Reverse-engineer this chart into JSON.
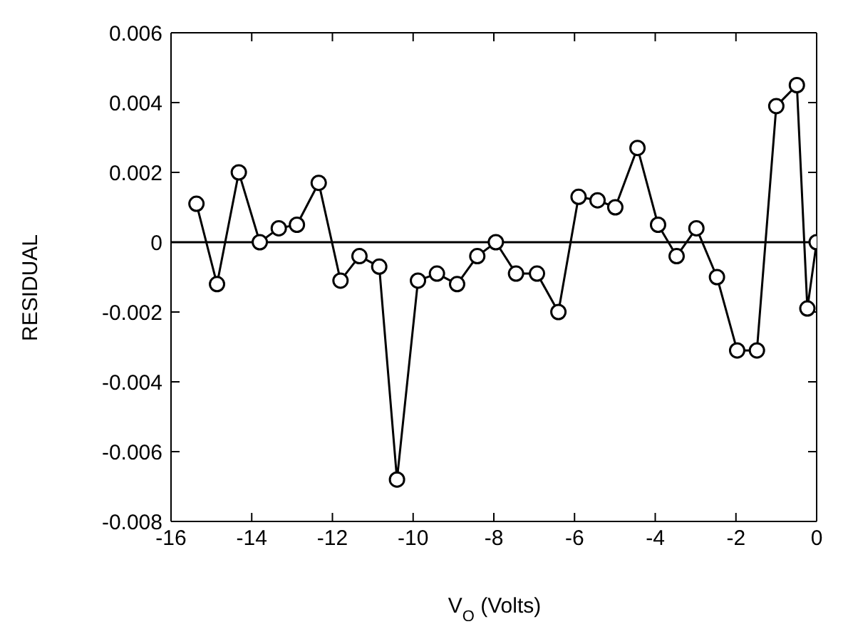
{
  "chart_data": {
    "type": "line",
    "xlabel": "V$_{O}$ (Volts)",
    "ylabel": "RESIDUAL",
    "x": [
      -15.37,
      -14.86,
      -14.32,
      -13.8,
      -13.33,
      -12.88,
      -12.34,
      -11.8,
      -11.33,
      -10.84,
      -10.4,
      -9.88,
      -9.41,
      -8.91,
      -8.41,
      -7.95,
      -7.45,
      -6.93,
      -6.4,
      -5.9,
      -5.43,
      -4.99,
      -4.44,
      -3.93,
      -3.47,
      -2.98,
      -2.47,
      -1.97,
      -1.48,
      -1.0,
      -0.49,
      -0.23,
      0
    ],
    "series": [
      {
        "color": "#000000",
        "values": [
          0.0011,
          -0.0012,
          0.002,
          0,
          0.0004,
          0.0005,
          0.0017,
          -0.0011,
          -0.0004,
          -0.0007,
          -0.0068,
          -0.0011,
          -0.0009,
          -0.0012,
          -0.0004,
          0,
          -0.0009,
          -0.0009,
          -0.002,
          0.0013,
          0.0012,
          0.001,
          0.0027,
          0.0005,
          -0.0004,
          0.0004,
          -0.001,
          -0.0031,
          -0.0031,
          0.0039,
          0.0045,
          -0.0019,
          0
        ]
      }
    ],
    "xlim": [
      -16,
      0
    ],
    "xticks": [
      -16,
      -14,
      -12,
      -10,
      -8,
      -6,
      -4,
      -2,
      0
    ],
    "ylim": [
      -0.008,
      0.006
    ],
    "yticks": [
      -0.008,
      -0.006,
      -0.004,
      -0.002,
      0,
      0.002,
      0.004,
      0.006
    ],
    "ref_lines": [
      {
        "axis": "y",
        "value": 0,
        "color": "#000000"
      }
    ],
    "marker": "circle",
    "line_style": "solid",
    "grid": false,
    "legend": false
  }
}
